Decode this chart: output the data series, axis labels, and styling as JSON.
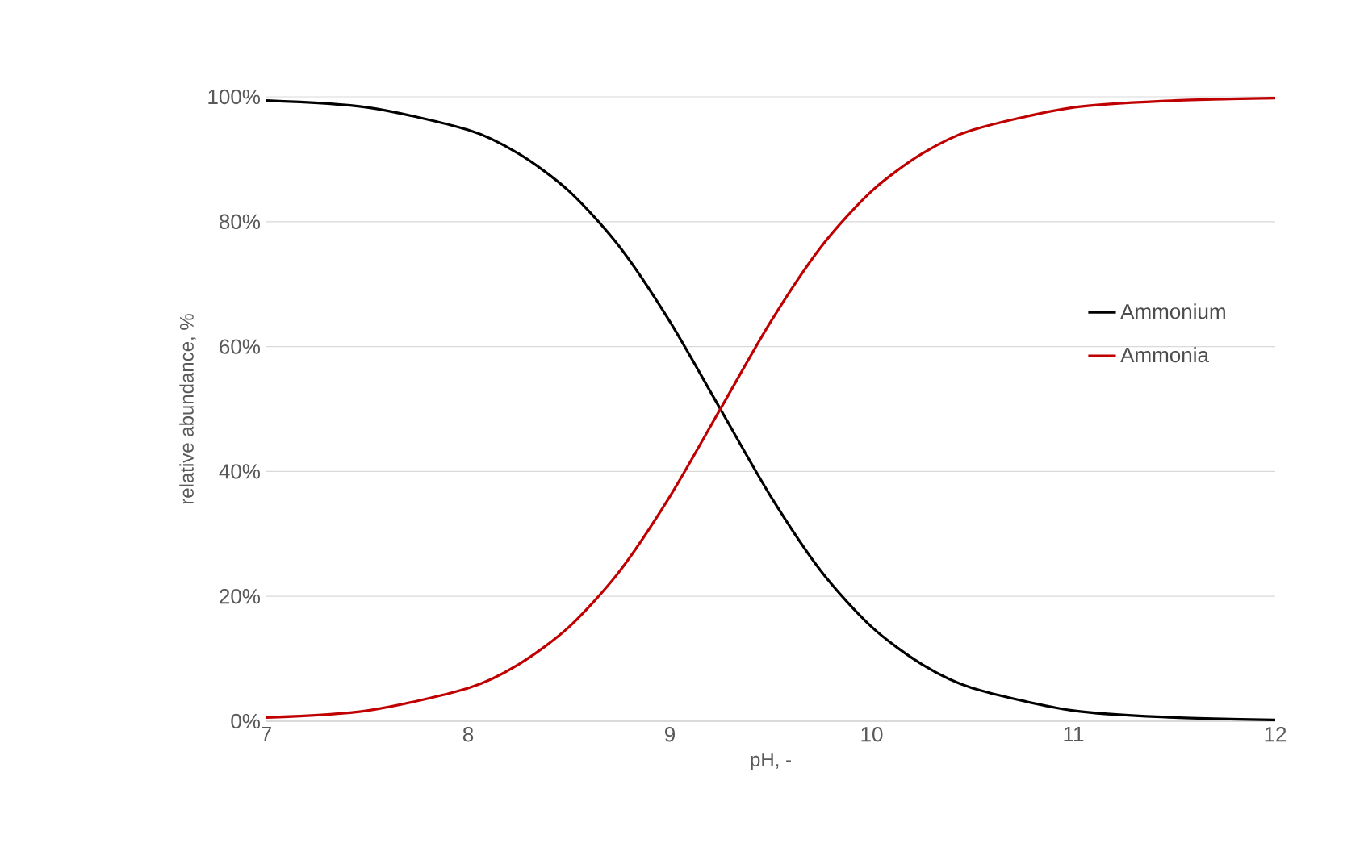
{
  "chart_data": {
    "type": "line",
    "xlabel": "pH, -",
    "ylabel": "relative abundance, %",
    "x": [
      7,
      7.5,
      8,
      8.25,
      8.5,
      8.75,
      9,
      9.25,
      9.5,
      9.75,
      10,
      10.25,
      10.5,
      11,
      11.5,
      12
    ],
    "series": [
      {
        "name": "Ammonium",
        "color": "#000000",
        "values": [
          99.4,
          98.3,
          94.7,
          90.9,
          84.9,
          76.0,
          64.0,
          50,
          36.0,
          24.0,
          15.1,
          9.1,
          5.3,
          1.7,
          0.6,
          0.2
        ]
      },
      {
        "name": "Ammonia",
        "color": "#c00000",
        "values": [
          0.6,
          1.7,
          5.3,
          9.1,
          15.1,
          24.0,
          36.0,
          50,
          64.0,
          76.0,
          84.9,
          90.9,
          94.7,
          98.3,
          99.4,
          99.8
        ]
      }
    ],
    "xlim": [
      7,
      12
    ],
    "xticks": [
      7,
      8,
      9,
      10,
      11,
      12
    ],
    "ylim": [
      0,
      100
    ],
    "yticks": [
      {
        "value": 0,
        "label": "0%"
      },
      {
        "value": 20,
        "label": "20%"
      },
      {
        "value": 40,
        "label": "40%"
      },
      {
        "value": 60,
        "label": "60%"
      },
      {
        "value": 80,
        "label": "80%"
      },
      {
        "value": 100,
        "label": "100%"
      }
    ],
    "grid": "y",
    "legend": "right",
    "marker": "none",
    "line_style": "solid"
  }
}
